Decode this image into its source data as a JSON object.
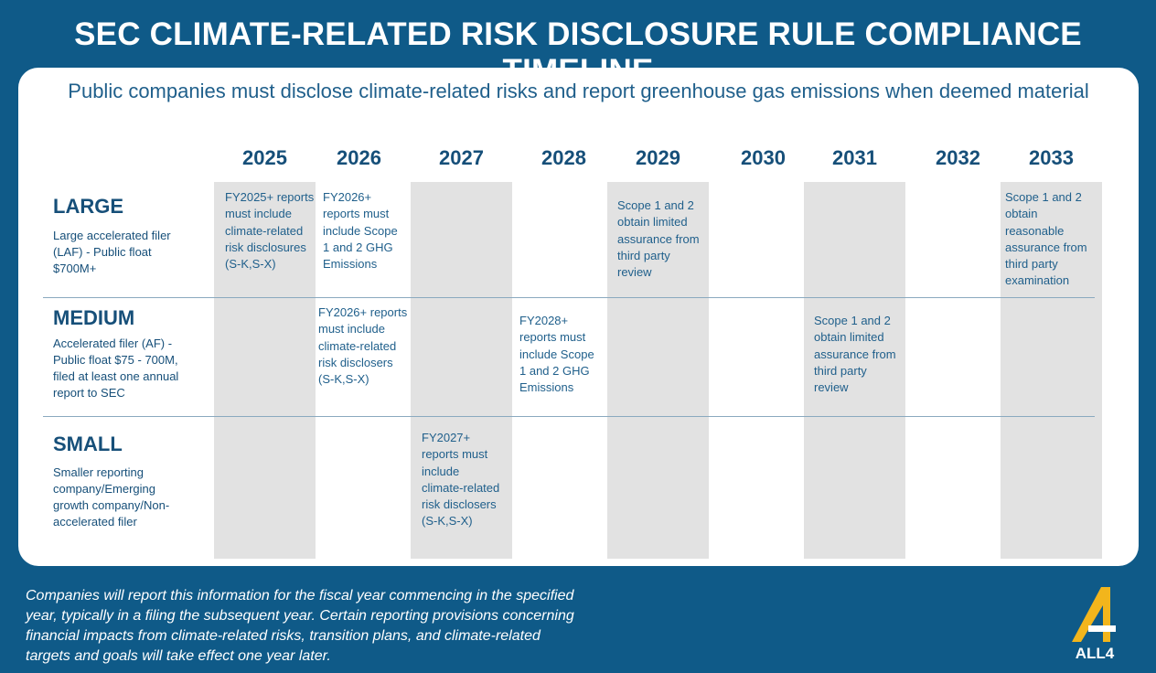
{
  "header": {
    "title": "SEC CLIMATE-RELATED RISK DISCLOSURE RULE COMPLIANCE TIMELINE",
    "subtitle": "Public companies must disclose climate-related risks and report greenhouse gas emissions when deemed material"
  },
  "years": [
    "2025",
    "2026",
    "2027",
    "2028",
    "2029",
    "2030",
    "2031",
    "2032",
    "2033"
  ],
  "tiers": [
    {
      "name": "LARGE",
      "description": "Large accelerated filer (LAF) - Public float $700M+"
    },
    {
      "name": "MEDIUM",
      "description": "Accelerated filer (AF) - Public float $75 - 700M, filed at least one annual report to SEC"
    },
    {
      "name": "SMALL",
      "description": "Smaller reporting company/Emerging growth company/Non-accelerated filer"
    }
  ],
  "cells": [
    {
      "tier": "LARGE",
      "year": "2025",
      "text": "FY2025+ reports must include climate-related risk disclosures (S-K,S-X)"
    },
    {
      "tier": "LARGE",
      "year": "2026",
      "text": "FY2026+ reports must include Scope 1 and 2 GHG Emissions"
    },
    {
      "tier": "LARGE",
      "year": "2029",
      "text": "Scope 1 and 2 obtain limited assurance from third party review"
    },
    {
      "tier": "LARGE",
      "year": "2033",
      "text": "Scope 1 and 2 obtain reasonable assurance from third party examination"
    },
    {
      "tier": "MEDIUM",
      "year": "2026",
      "text": "FY2026+ reports must include climate-related risk disclosers (S-K,S-X)"
    },
    {
      "tier": "MEDIUM",
      "year": "2028",
      "text": "FY2028+ reports must include Scope 1 and 2 GHG Emissions"
    },
    {
      "tier": "MEDIUM",
      "year": "2031",
      "text": "Scope 1 and 2 obtain limited assurance from third party review"
    },
    {
      "tier": "SMALL",
      "year": "2027",
      "text": "FY2027+ reports must include climate-related risk disclosers (S-K,S-X)"
    }
  ],
  "footer": {
    "note": "Companies will report this information for the fiscal year commencing in the specified year, typically in a filing the subsequent year. Certain reporting provisions concerning financial impacts from climate-related risks, transition plans, and climate-related targets and goals will take effect one year later.",
    "logo": "ALL4"
  }
}
